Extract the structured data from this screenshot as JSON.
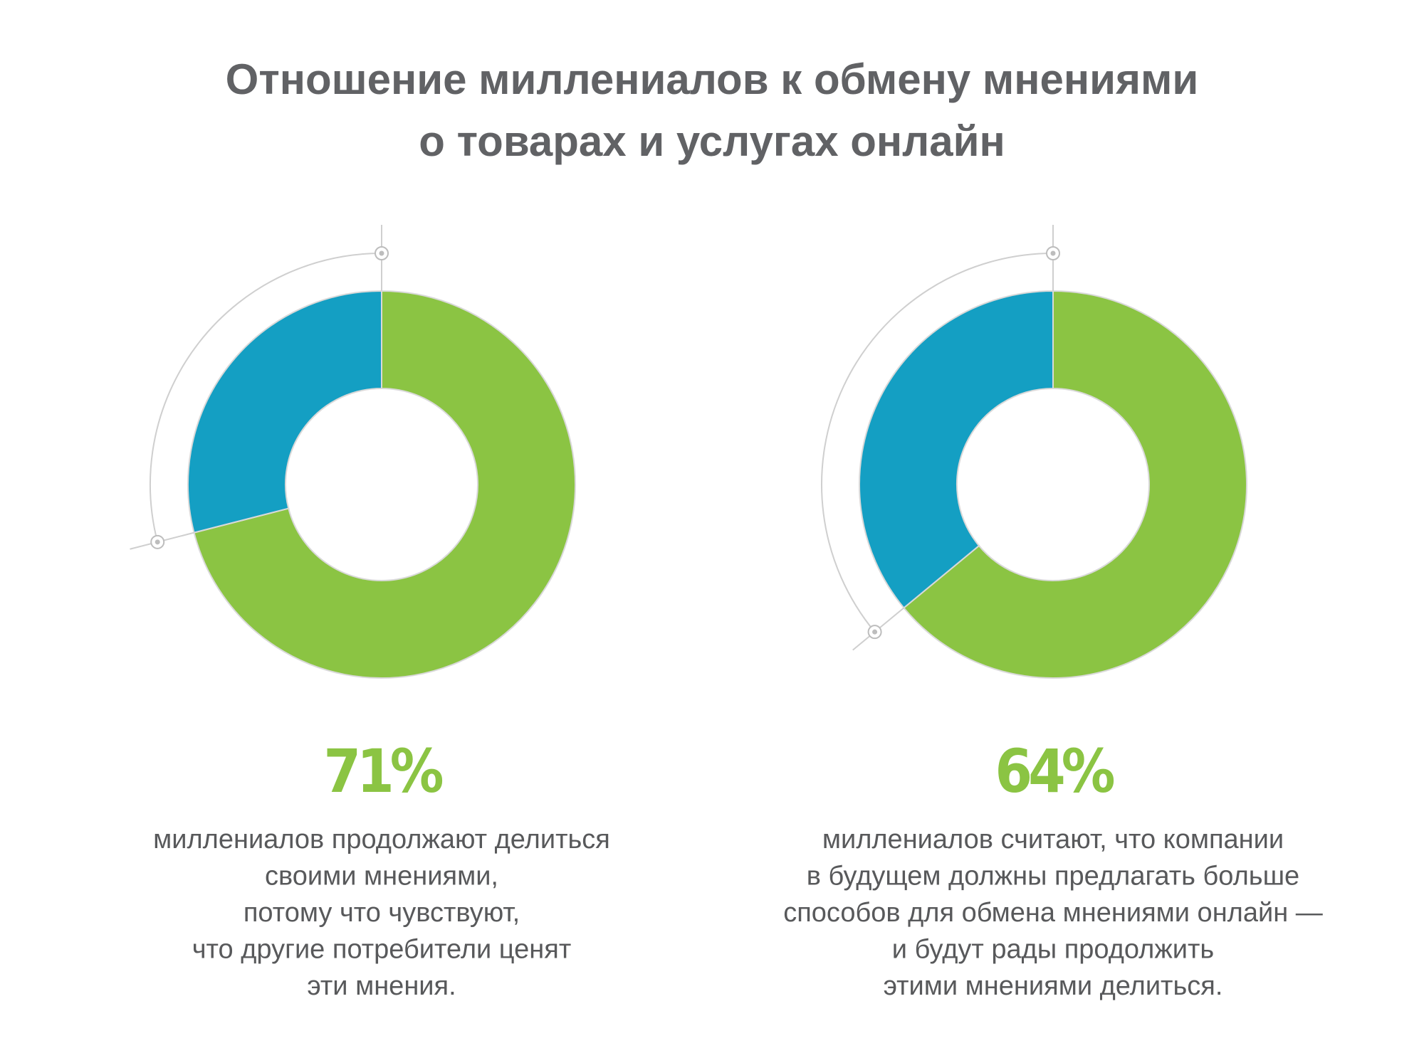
{
  "title": [
    "Отношение миллениалов к обмену мнениями",
    "о товарах и услугах онлайн"
  ],
  "chart_data": [
    {
      "type": "donut",
      "values": [
        71,
        29
      ],
      "value_labels": [
        "71%",
        null
      ],
      "colors": [
        "#8bc443",
        "#149fc3"
      ],
      "description": [
        "миллениалов продолжают делиться",
        "своими мнениями,",
        "потому что чувствуют,",
        "что другие потребители ценят",
        "эти мнения."
      ]
    },
    {
      "type": "donut",
      "values": [
        64,
        36
      ],
      "value_labels": [
        "64%",
        null
      ],
      "colors": [
        "#8bc443",
        "#149fc3"
      ],
      "description": [
        "миллениалов считают, что компании",
        "в будущем должны предлагать больше",
        "способов для обмена мнениями онлайн —",
        "и будут рады продолжить",
        "этими мнениями делиться."
      ]
    }
  ]
}
